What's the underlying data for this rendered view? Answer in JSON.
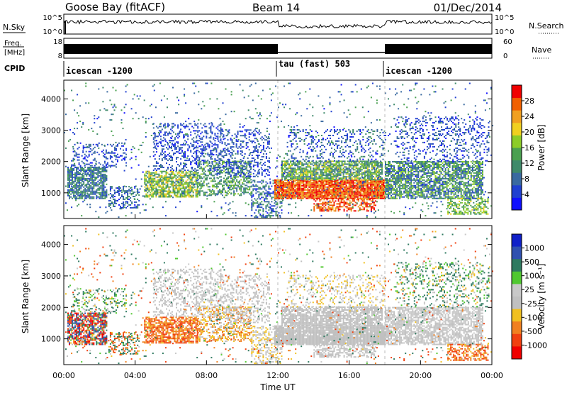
{
  "header": {
    "title": "Goose Bay (fitACF)",
    "beam": "Beam 14",
    "date": "01/Dec/2014"
  },
  "noise_panel": {
    "left_label": "N.Sky",
    "left_ticks": [
      "10^5",
      "10^0"
    ],
    "right_ticks": [
      "10^5",
      "10^0"
    ],
    "right_label": "N.Search"
  },
  "freq_panel": {
    "left_label_line1": "Freq.",
    "left_label_line2": "[MHz]",
    "left_ticks": [
      "18",
      "8"
    ],
    "right_ticks": [
      "60",
      "0"
    ],
    "right_label": "Nave"
  },
  "cpid": {
    "label": "CPID",
    "segments": [
      {
        "start": 0,
        "end": 12,
        "name": "icescan -1200"
      },
      {
        "start": 12,
        "end": 18,
        "name": "tau (fast) 503"
      },
      {
        "start": 18,
        "end": 24,
        "name": "icescan -1200"
      }
    ]
  },
  "chart_data": [
    {
      "type": "heatmap",
      "quantity": "power",
      "ylabel": "Slant Range [km]",
      "ylim": [
        180,
        4600
      ],
      "yticks": [
        "1000",
        "2000",
        "3000",
        "4000"
      ],
      "colorbar_label": "Power [dB]",
      "colorbar_ticks": [
        "4",
        "8",
        "12",
        "16",
        "20",
        "24",
        "28"
      ],
      "colors": [
        "#1010ff",
        "#2040d0",
        "#3a6aa0",
        "#3f8a6a",
        "#4aa050",
        "#8ccc28",
        "#f0d020",
        "#f0a020",
        "#f06000",
        "#f00000"
      ]
    },
    {
      "type": "heatmap",
      "quantity": "velocity",
      "ylabel": "Slant Range [km]",
      "ylim": [
        180,
        4600
      ],
      "yticks": [
        "1000",
        "2000",
        "3000",
        "4000"
      ],
      "colorbar_label": "Velocity [m s⁻¹]",
      "colorbar_ticks": [
        "1000",
        "500",
        "100",
        "25",
        "-25",
        "-100",
        "-500",
        "-1000"
      ],
      "colors": [
        "#1020c8",
        "#3050b0",
        "#2f7a60",
        "#50c830",
        "#c8c8c8",
        "#c0c0c0",
        "#f0c020",
        "#f08020",
        "#f04010",
        "#f00000"
      ],
      "xlabel": "Time UT",
      "xticks": [
        "00:00",
        "04:00",
        "08:00",
        "12:00",
        "16:00",
        "20:00",
        "00:00"
      ],
      "xlim": [
        0,
        24
      ]
    }
  ],
  "scatter_regions": [
    {
      "t0": 0.2,
      "t1": 2.4,
      "r0": 800,
      "r1": 1800,
      "dens": 0.75,
      "p": [
        6,
        14
      ],
      "v": [
        -1000,
        1000
      ]
    },
    {
      "t0": 0.5,
      "t1": 3.5,
      "r0": 1800,
      "r1": 2600,
      "dens": 0.25,
      "p": [
        4,
        10
      ],
      "v": [
        -100,
        500
      ]
    },
    {
      "t0": 2.5,
      "t1": 4.2,
      "r0": 500,
      "r1": 1200,
      "dens": 0.4,
      "p": [
        4,
        12
      ],
      "v": [
        -500,
        500
      ]
    },
    {
      "t0": 4.5,
      "t1": 7.5,
      "r0": 850,
      "r1": 1700,
      "dens": 0.7,
      "p": [
        10,
        22
      ],
      "v": [
        -500,
        -25
      ]
    },
    {
      "t0": 5.0,
      "t1": 9.0,
      "r0": 1700,
      "r1": 3200,
      "dens": 0.3,
      "p": [
        4,
        10
      ],
      "v": [
        -25,
        25
      ]
    },
    {
      "t0": 7.5,
      "t1": 10.5,
      "r0": 900,
      "r1": 2000,
      "dens": 0.45,
      "p": [
        8,
        18
      ],
      "v": [
        -200,
        50
      ]
    },
    {
      "t0": 9.0,
      "t1": 11.5,
      "r0": 1500,
      "r1": 3000,
      "dens": 0.3,
      "p": [
        4,
        10
      ],
      "v": [
        -25,
        25
      ]
    },
    {
      "t0": 10.5,
      "t1": 12.2,
      "r0": 200,
      "r1": 1400,
      "dens": 0.35,
      "p": [
        4,
        14
      ],
      "v": [
        -100,
        100
      ]
    },
    {
      "t0": 11.8,
      "t1": 18.0,
      "r0": 800,
      "r1": 1400,
      "dens": 0.92,
      "p": [
        22,
        30
      ],
      "v": [
        -25,
        25
      ]
    },
    {
      "t0": 12.2,
      "t1": 17.8,
      "r0": 1400,
      "r1": 2000,
      "dens": 0.75,
      "p": [
        8,
        20
      ],
      "v": [
        -25,
        25
      ]
    },
    {
      "t0": 14.0,
      "t1": 17.5,
      "r0": 400,
      "r1": 800,
      "dens": 0.55,
      "p": [
        22,
        30
      ],
      "v": [
        -25,
        25
      ]
    },
    {
      "t0": 12.5,
      "t1": 18.0,
      "r0": 2000,
      "r1": 3000,
      "dens": 0.2,
      "p": [
        4,
        12
      ],
      "v": [
        -100,
        100
      ]
    },
    {
      "t0": 18.0,
      "t1": 23.5,
      "r0": 800,
      "r1": 2000,
      "dens": 0.7,
      "p": [
        6,
        18
      ],
      "v": [
        -25,
        100
      ]
    },
    {
      "t0": 18.5,
      "t1": 23.8,
      "r0": 2000,
      "r1": 3400,
      "dens": 0.2,
      "p": [
        4,
        10
      ],
      "v": [
        -100,
        500
      ]
    },
    {
      "t0": 21.5,
      "t1": 23.8,
      "r0": 300,
      "r1": 800,
      "dens": 0.55,
      "p": [
        12,
        20
      ],
      "v": [
        -500,
        -25
      ]
    },
    {
      "t0": 0,
      "t1": 24,
      "r0": 200,
      "r1": 4500,
      "dens": 0.03,
      "p": [
        4,
        16
      ],
      "v": [
        -500,
        500
      ]
    }
  ]
}
